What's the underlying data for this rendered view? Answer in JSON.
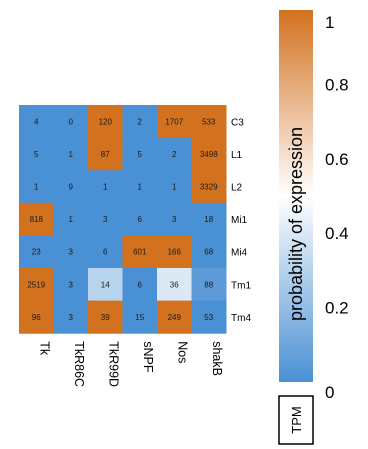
{
  "chart_data": {
    "type": "heatmap",
    "rows": [
      "C3",
      "L1",
      "L2",
      "Mi1",
      "Mi4",
      "Tm1",
      "Tm4"
    ],
    "columns": [
      "Tk",
      "TkR86C",
      "TkR99D",
      "sNPF",
      "Nos",
      "shakB"
    ],
    "tpm": [
      [
        4,
        0,
        120,
        2,
        1707,
        533
      ],
      [
        5,
        1,
        87,
        5,
        2,
        3498
      ],
      [
        1,
        9,
        1,
        1,
        1,
        3329
      ],
      [
        818,
        1,
        3,
        6,
        3,
        18
      ],
      [
        23,
        3,
        6,
        601,
        166,
        68
      ],
      [
        2519,
        3,
        14,
        6,
        36,
        88
      ],
      [
        96,
        3,
        39,
        15,
        249,
        53
      ]
    ],
    "probability": [
      [
        0.0,
        0.0,
        1.0,
        0.0,
        1.0,
        1.0
      ],
      [
        0.0,
        0.0,
        1.0,
        0.0,
        0.0,
        1.0
      ],
      [
        0.0,
        0.0,
        0.0,
        0.0,
        0.0,
        1.0
      ],
      [
        1.0,
        0.0,
        0.0,
        0.0,
        0.0,
        0.0
      ],
      [
        0.0,
        0.0,
        0.0,
        1.0,
        1.0,
        0.0
      ],
      [
        1.0,
        0.0,
        0.3,
        0.0,
        0.4,
        0.05
      ],
      [
        1.0,
        0.0,
        1.0,
        0.0,
        1.0,
        0.0
      ]
    ],
    "colorbar": {
      "title": "probability of expression",
      "ticks": [
        "0",
        "0.2",
        "0.4",
        "0.6",
        "0.8",
        "1"
      ],
      "tick_values": [
        0,
        0.2,
        0.4,
        0.6,
        0.8,
        1
      ],
      "range": [
        0,
        1
      ],
      "low_color": "#4a90d4",
      "mid_color": "#ffffff",
      "high_color": "#d2711e"
    },
    "legend_box_label": "TPM"
  }
}
